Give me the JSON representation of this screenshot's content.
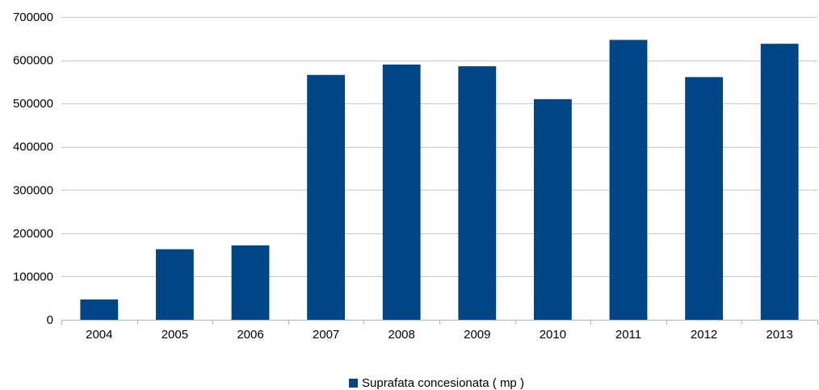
{
  "chart_data": {
    "type": "bar",
    "categories": [
      "2004",
      "2005",
      "2006",
      "2007",
      "2008",
      "2009",
      "2010",
      "2011",
      "2012",
      "2013"
    ],
    "series": [
      {
        "name": "Suprafata concesionata ( mp )",
        "values": [
          47000,
          163000,
          172000,
          566000,
          590000,
          586000,
          510000,
          647000,
          561000,
          638000
        ],
        "color": "#004586"
      }
    ],
    "ylim": [
      0,
      700000
    ],
    "yticks": [
      0,
      100000,
      200000,
      300000,
      400000,
      500000,
      600000,
      700000
    ],
    "grid": true,
    "legend_position": "bottom-center",
    "title": "",
    "xlabel": "",
    "ylabel": ""
  }
}
